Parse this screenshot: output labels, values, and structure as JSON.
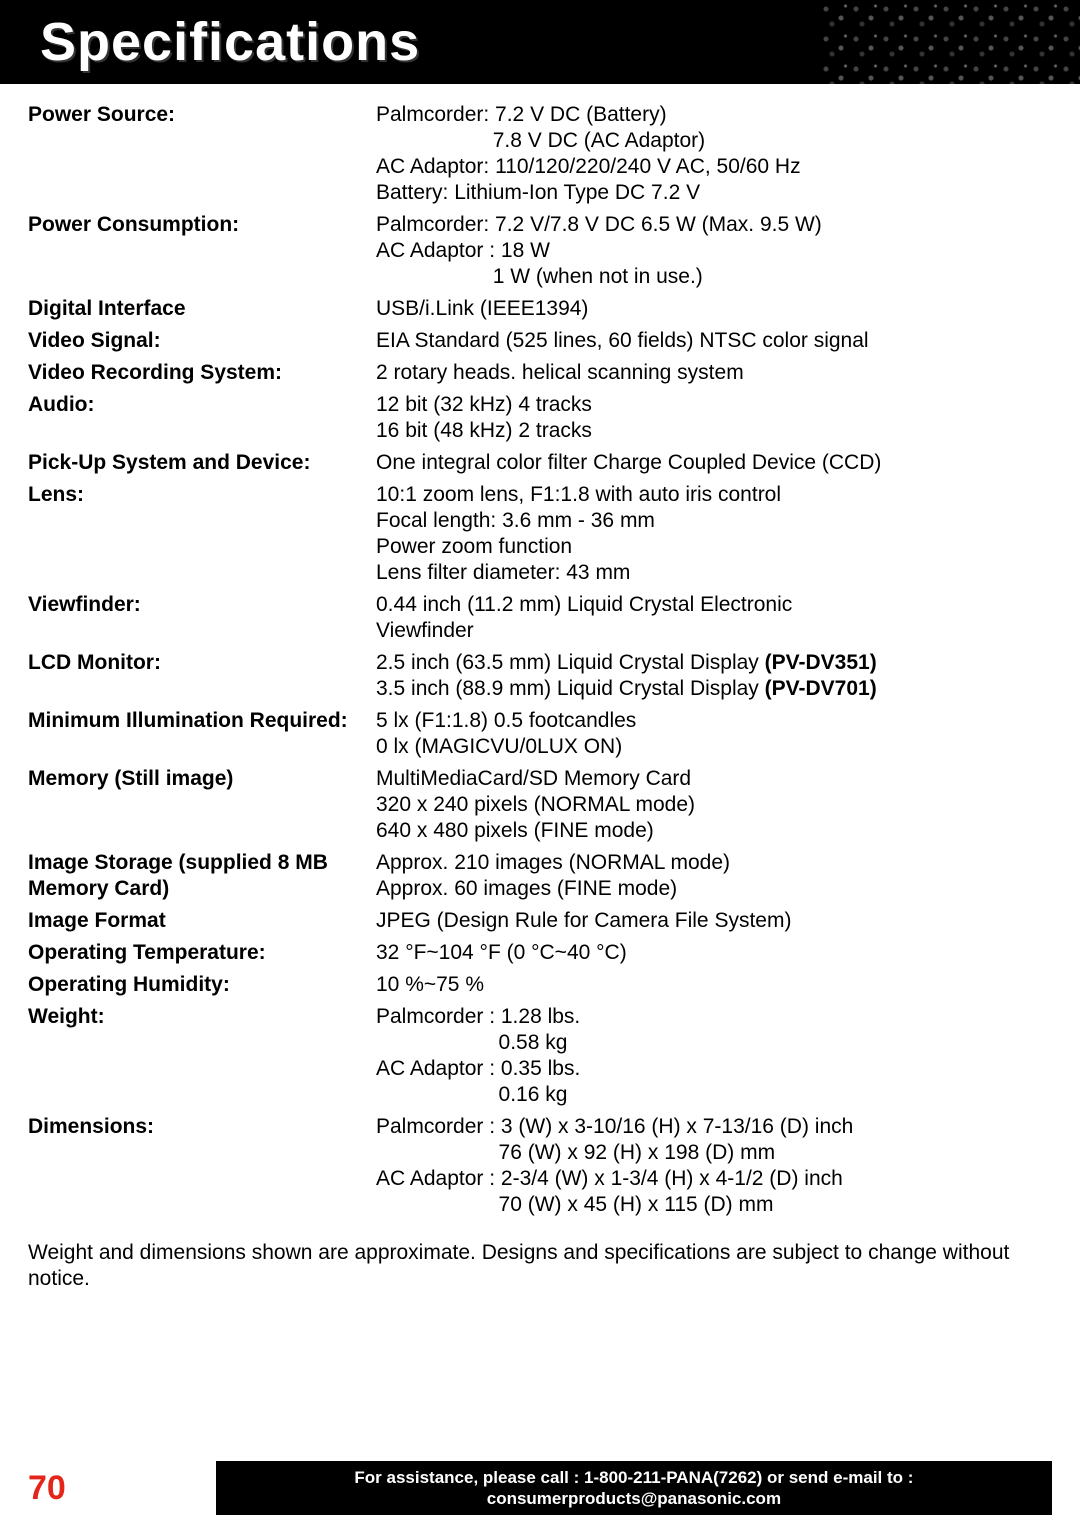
{
  "header": {
    "title": "Specifications"
  },
  "rows": [
    {
      "label": "Power Source:",
      "value": "Palmcorder: 7.2 V DC (Battery)\n                    7.8 V DC (AC Adaptor)\nAC Adaptor: 110/120/220/240 V AC, 50/60 Hz\nBattery: Lithium-Ion Type DC 7.2 V"
    },
    {
      "label": "Power Consumption:",
      "value": "Palmcorder: 7.2 V/7.8 V DC 6.5 W (Max. 9.5 W)\nAC Adaptor : 18 W\n                    1 W (when not in use.)"
    },
    {
      "label": "Digital Interface",
      "value": "USB/i.Link (IEEE1394)"
    },
    {
      "label": "Video Signal:",
      "value": "EIA Standard (525 lines, 60 fields) NTSC color signal"
    },
    {
      "label": "Video Recording System:",
      "value": "2 rotary heads. helical scanning system"
    },
    {
      "label": "Audio:",
      "value": "12 bit (32 kHz) 4 tracks\n16 bit (48 kHz) 2 tracks"
    },
    {
      "label": "Pick-Up System and Device:",
      "value": "One integral color filter Charge Coupled Device (CCD)"
    },
    {
      "label": "Lens:",
      "value": "10:1 zoom lens, F1:1.8 with auto iris control\nFocal length: 3.6 mm - 36 mm\nPower zoom function\nLens filter diameter: 43 mm"
    },
    {
      "label": "Viewfinder:",
      "value": "0.44 inch (11.2 mm) Liquid Crystal Electronic\nViewfinder"
    },
    {
      "label": "LCD Monitor:",
      "value_html": "2.5 inch (63.5 mm) Liquid Crystal Display <b>(PV-DV351)</b>\n3.5 inch (88.9 mm) Liquid Crystal Display <b>(PV-DV701)</b>"
    },
    {
      "label": "Minimum Illumination Required:",
      "value": "5 lx (F1:1.8) 0.5 footcandles\n0 lx (MAGICVU/0LUX ON)"
    },
    {
      "label": "Memory (Still image)",
      "value": "MultiMediaCard/SD Memory Card\n320 x 240 pixels (NORMAL mode)\n640 x 480 pixels (FINE mode)"
    },
    {
      "label": "Image Storage (supplied\n8 MB Memory Card)",
      "value": "Approx. 210 images (NORMAL mode)\nApprox. 60 images (FINE mode)"
    },
    {
      "label": "Image Format",
      "value": "JPEG (Design Rule for Camera File System)"
    },
    {
      "label": "Operating Temperature:",
      "value": "32 °F~104 °F (0 °C~40 °C)"
    },
    {
      "label": "Operating Humidity:",
      "value": "10 %~75 %"
    },
    {
      "label": "Weight:",
      "value": "Palmcorder : 1.28 lbs.\n                     0.58 kg\nAC Adaptor : 0.35 lbs.\n                     0.16 kg"
    },
    {
      "label": "Dimensions:",
      "value": "Palmcorder : 3 (W) x 3-10/16 (H) x 7-13/16 (D) inch\n                     76 (W) x 92 (H) x 198 (D) mm\nAC Adaptor : 2-3/4 (W) x 1-3/4 (H) x 4-1/2 (D) inch\n                     70 (W) x 45 (H) x 115 (D) mm"
    }
  ],
  "footnote": "Weight and dimensions shown are approximate.\nDesigns and specifications are subject to change without notice.",
  "footer": {
    "page": "70",
    "assist": "For assistance, please call : 1-800-211-PANA(7262) or\nsend e-mail to : consumerproducts@panasonic.com"
  },
  "colors": {
    "page_num": "#e32619",
    "band_bg": "#000000",
    "band_fg": "#ffffff"
  }
}
